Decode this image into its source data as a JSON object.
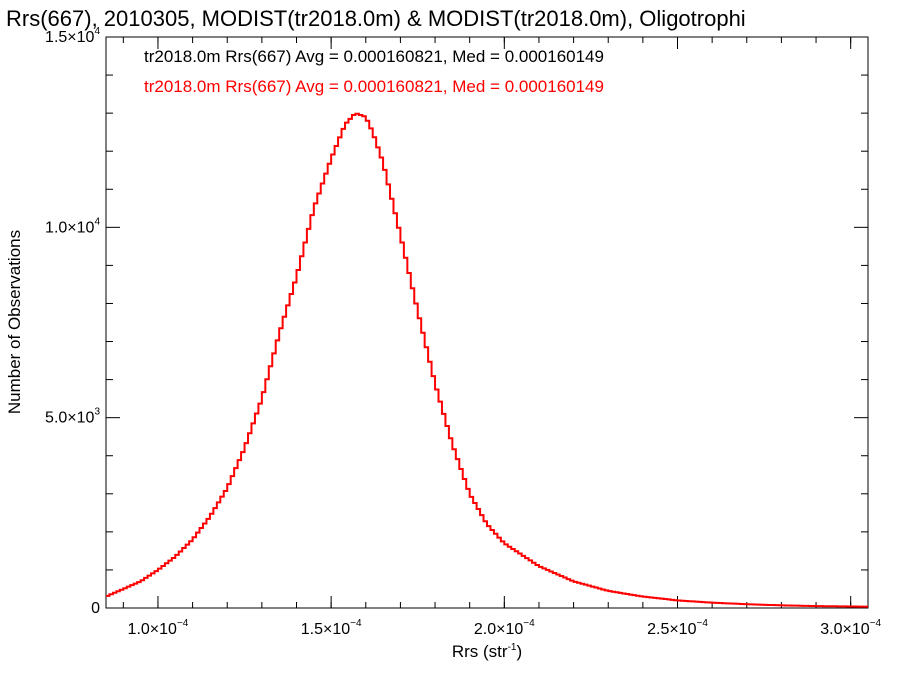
{
  "chart_data": {
    "type": "line",
    "title": "Rrs(667), 2010305, MODIST(tr2018.0m) & MODIST(tr2018.0m), Oligotrophi",
    "xlabel": "Rrs (str",
    "xlabel_sup": "-1",
    "xlabel_end": ")",
    "ylabel": "Number of Observations",
    "xlim": [
      8.5e-05,
      0.000305
    ],
    "ylim": [
      0,
      15000
    ],
    "xticks": [
      {
        "value": 0.0001,
        "mant": "1.0×10",
        "exp": "−4"
      },
      {
        "value": 0.00015,
        "mant": "1.5×10",
        "exp": "−4"
      },
      {
        "value": 0.0002,
        "mant": "2.0×10",
        "exp": "−4"
      },
      {
        "value": 0.00025,
        "mant": "2.5×10",
        "exp": "−4"
      },
      {
        "value": 0.0003,
        "mant": "3.0×10",
        "exp": "−4"
      }
    ],
    "yticks": [
      {
        "value": 0,
        "mant": "0",
        "exp": ""
      },
      {
        "value": 5000,
        "mant": "5.0×10",
        "exp": "3"
      },
      {
        "value": 10000,
        "mant": "1.0×10",
        "exp": "4"
      },
      {
        "value": 15000,
        "mant": "1.5×10",
        "exp": "4"
      }
    ],
    "annotations": [
      {
        "text": "tr2018.0m Rrs(667) Avg = 0.000160821, Med = 0.000160149",
        "color": "#000000"
      },
      {
        "text": "tr2018.0m Rrs(667) Avg = 0.000160821, Med = 0.000160149",
        "color": "#ff0000"
      }
    ],
    "series": [
      {
        "color": "#ff0000",
        "style": "step",
        "x": [
          8.5e-05,
          9e-05,
          9.5e-05,
          0.0001,
          0.000105,
          0.00011,
          0.000115,
          0.00012,
          0.000125,
          0.00013,
          0.000135,
          0.00014,
          0.000145,
          0.00015,
          0.000154,
          0.000157,
          0.00016,
          0.000162,
          0.000165,
          0.00017,
          0.000175,
          0.00018,
          0.000185,
          0.00019,
          0.000195,
          0.0002,
          0.00021,
          0.00022,
          0.00023,
          0.00024,
          0.00025,
          0.00026,
          0.00027,
          0.00028,
          0.00029,
          0.0003,
          0.000305
        ],
        "y": [
          300,
          500,
          700,
          1000,
          1350,
          1800,
          2400,
          3150,
          4200,
          5500,
          7200,
          8700,
          10500,
          11800,
          12700,
          13000,
          12900,
          12500,
          11700,
          9800,
          7800,
          5900,
          4300,
          3000,
          2200,
          1700,
          1100,
          700,
          450,
          300,
          200,
          140,
          100,
          70,
          50,
          40,
          35
        ]
      }
    ]
  }
}
